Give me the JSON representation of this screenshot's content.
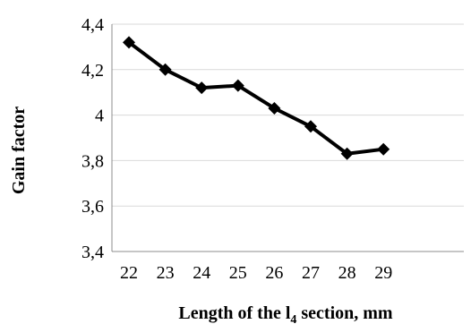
{
  "chart_data": {
    "type": "line",
    "title": "",
    "xlabel": "Length of the l",
    "xlabel_subscript": "4",
    "xlabel_suffix": " section, mm",
    "ylabel": "Gain factor",
    "x": [
      22,
      23,
      24,
      25,
      26,
      27,
      28,
      29
    ],
    "x_tick_labels": [
      "22",
      "23",
      "24",
      "25",
      "26",
      "27",
      "28",
      "29"
    ],
    "series": [
      {
        "values": [
          4.32,
          4.2,
          4.12,
          4.13,
          4.03,
          3.95,
          3.83,
          3.85
        ]
      }
    ],
    "ylim": [
      3.4,
      4.4
    ],
    "y_ticks": [
      3.4,
      3.6,
      3.8,
      4.0,
      4.2,
      4.4
    ],
    "y_tick_labels": [
      "3,4",
      "3,6",
      "3,8",
      "4",
      "4,2",
      "4,4"
    ],
    "grid": true,
    "legend": "none",
    "line_color": "#000000",
    "marker": "diamond",
    "grid_color": "#d9d9d9"
  }
}
